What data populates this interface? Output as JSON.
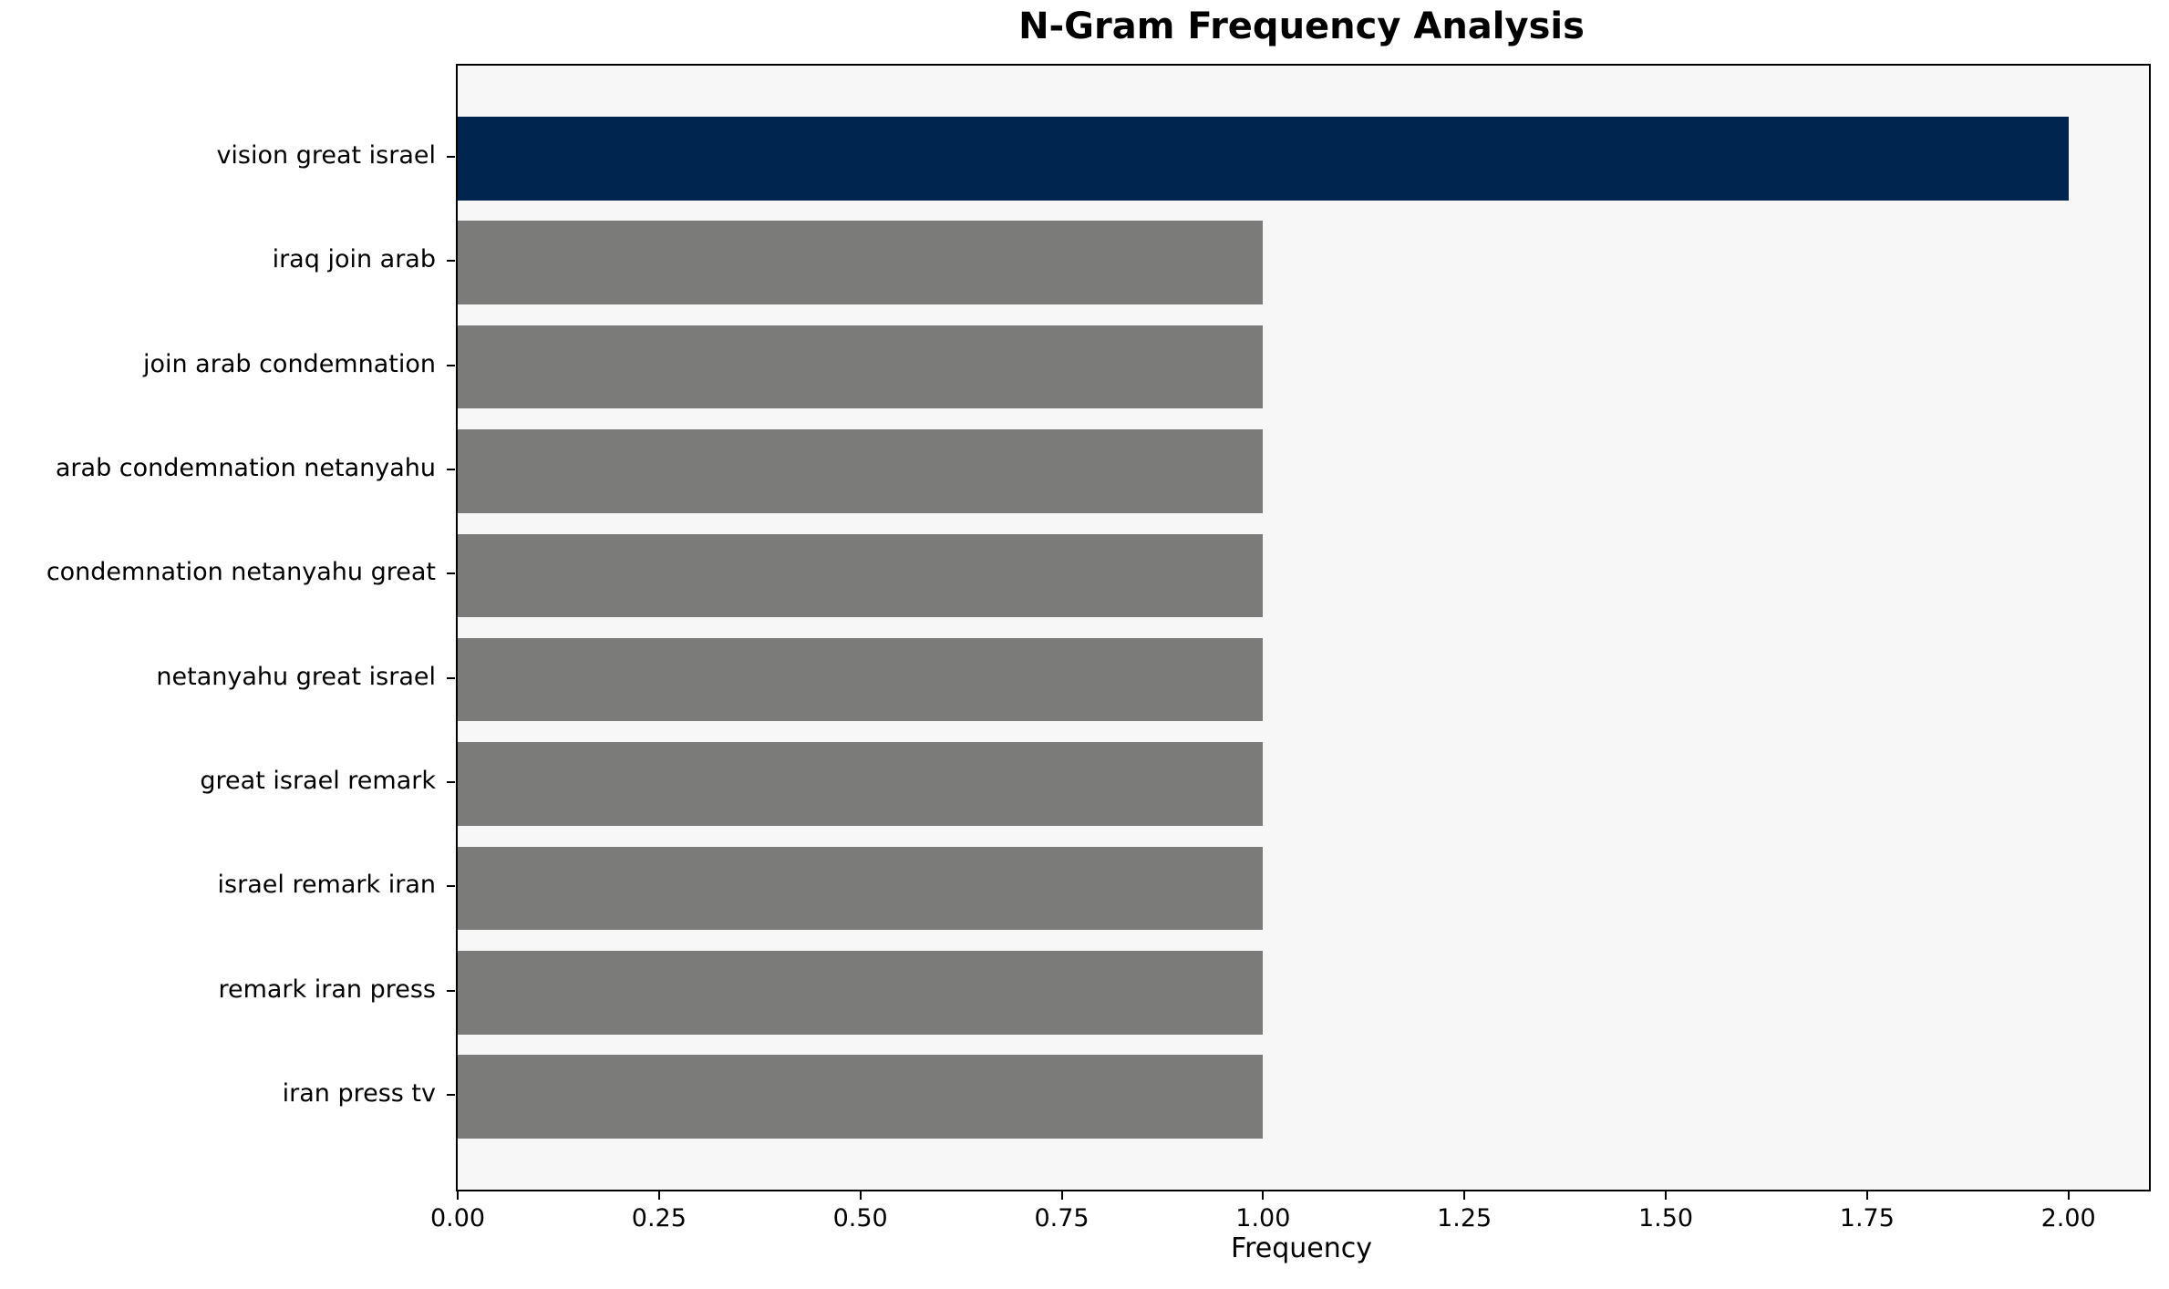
{
  "chart_data": {
    "type": "bar",
    "orientation": "horizontal",
    "title": "N-Gram Frequency Analysis",
    "xlabel": "Frequency",
    "ylabel": "",
    "categories": [
      "vision great israel",
      "iraq join arab",
      "join arab condemnation",
      "arab condemnation netanyahu",
      "condemnation netanyahu great",
      "netanyahu great israel",
      "great israel remark",
      "israel remark iran",
      "remark iran press",
      "iran press tv"
    ],
    "values": [
      2.0,
      1.0,
      1.0,
      1.0,
      1.0,
      1.0,
      1.0,
      1.0,
      1.0,
      1.0
    ],
    "colors": [
      "#00254e",
      "#7b7b79",
      "#7b7b79",
      "#7b7b79",
      "#7b7b79",
      "#7b7b79",
      "#7b7b79",
      "#7b7b79",
      "#7b7b79",
      "#7b7b79"
    ],
    "highlight_color": "#00254e",
    "base_color": "#7b7b79",
    "plot_bg": "#f7f7f7",
    "figure_bg": "#ffffff",
    "spine_color": "#000000",
    "xlim": [
      0,
      2.1
    ],
    "x_ticks": [
      0,
      0.25,
      0.5,
      0.75,
      1.0,
      1.25,
      1.5,
      1.75,
      2.0
    ],
    "x_tick_labels": [
      "0.00",
      "0.25",
      "0.50",
      "0.75",
      "1.00",
      "1.25",
      "1.50",
      "1.75",
      "2.00"
    ],
    "bar_height_units": 0.8,
    "grid": false,
    "legend": null
  }
}
